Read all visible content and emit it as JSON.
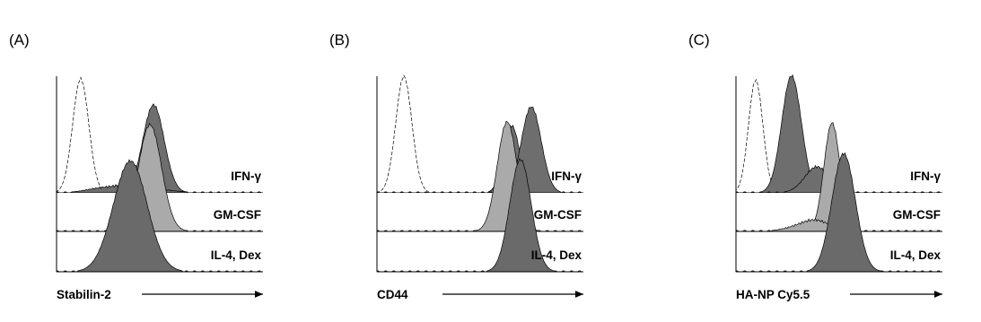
{
  "panels": [
    {
      "label": "(A)",
      "axis_label": "Stabilin-2",
      "tracks": [
        "IFN-γ",
        "GM-CSF",
        "IL-4, Dex"
      ]
    },
    {
      "label": "(B)",
      "axis_label": "CD44",
      "tracks": [
        "IFN-γ",
        "GM-CSF",
        "IL-4, Dex"
      ]
    },
    {
      "label": "(C)",
      "axis_label": "HA-NP Cy5.5",
      "tracks": [
        "IFN-γ",
        "GM-CSF",
        "IL-4, Dex"
      ]
    }
  ]
}
